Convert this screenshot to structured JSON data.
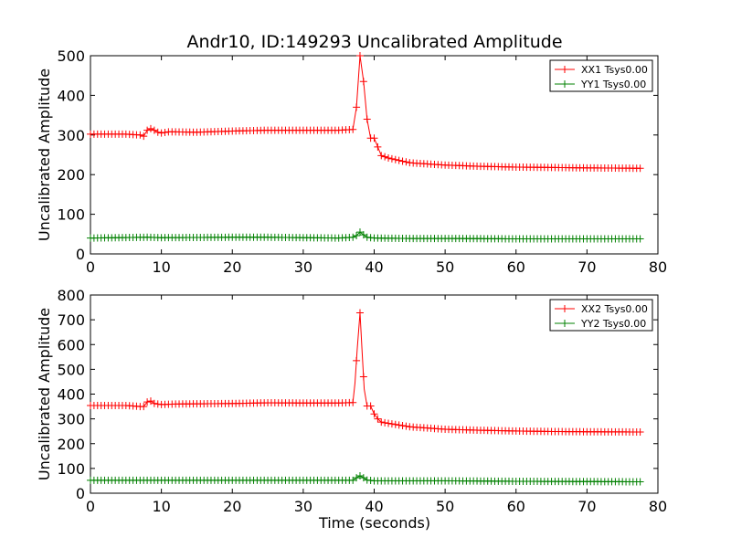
{
  "chart_data": {
    "title": "Andr10, ID:149293 Uncalibrated Amplitude",
    "xlabel": "Time (seconds)",
    "panels": [
      {
        "type": "line",
        "ylabel": "Uncalibrated Amplitude",
        "xlim": [
          0,
          80
        ],
        "ylim": [
          0,
          500
        ],
        "xticks": [
          "0",
          "10",
          "20",
          "30",
          "40",
          "50",
          "60",
          "70",
          "80"
        ],
        "yticks": [
          "0",
          "100",
          "200",
          "300",
          "400",
          "500"
        ],
        "legend_position": "top-right",
        "series": [
          {
            "name": "XX1 Tsys0.00",
            "color": "#ff0000",
            "marker": "plus",
            "points": [
              [
                0,
                302
              ],
              [
                5,
                302
              ],
              [
                7,
                300
              ],
              [
                7.5,
                297
              ],
              [
                8,
                312
              ],
              [
                8.5,
                316
              ],
              [
                9,
                312
              ],
              [
                9.5,
                307
              ],
              [
                10,
                305
              ],
              [
                11,
                308
              ],
              [
                15,
                307
              ],
              [
                20,
                310
              ],
              [
                25,
                312
              ],
              [
                30,
                312
              ],
              [
                35,
                312
              ],
              [
                37,
                314
              ],
              [
                37.5,
                370
              ],
              [
                38,
                500
              ],
              [
                38.5,
                435
              ],
              [
                39,
                340
              ],
              [
                39.5,
                292
              ],
              [
                40,
                292
              ],
              [
                40.5,
                270
              ],
              [
                41,
                248
              ],
              [
                42,
                242
              ],
              [
                43,
                238
              ],
              [
                45,
                230
              ],
              [
                50,
                224
              ],
              [
                55,
                221
              ],
              [
                60,
                219
              ],
              [
                65,
                218
              ],
              [
                70,
                217
              ],
              [
                77.5,
                216
              ]
            ]
          },
          {
            "name": "YY1 Tsys0.00",
            "color": "#008000",
            "marker": "plus",
            "points": [
              [
                0,
                40
              ],
              [
                8,
                42
              ],
              [
                10,
                41
              ],
              [
                20,
                42
              ],
              [
                25,
                42
              ],
              [
                30,
                41
              ],
              [
                35,
                40
              ],
              [
                37,
                42
              ],
              [
                37.5,
                46
              ],
              [
                38,
                55
              ],
              [
                38.5,
                48
              ],
              [
                39,
                42
              ],
              [
                40,
                40
              ],
              [
                45,
                39
              ],
              [
                50,
                39
              ],
              [
                60,
                38
              ],
              [
                70,
                38
              ],
              [
                77.5,
                38
              ]
            ]
          }
        ]
      },
      {
        "type": "line",
        "ylabel": "Uncalibrated Amplitude",
        "xlim": [
          0,
          80
        ],
        "ylim": [
          0,
          800
        ],
        "xticks": [
          "0",
          "10",
          "20",
          "30",
          "40",
          "50",
          "60",
          "70",
          "80"
        ],
        "yticks": [
          "0",
          "100",
          "200",
          "300",
          "400",
          "500",
          "600",
          "700",
          "800"
        ],
        "legend_position": "top-right",
        "series": [
          {
            "name": "XX2 Tsys0.00",
            "color": "#ff0000",
            "marker": "plus",
            "points": [
              [
                0,
                354
              ],
              [
                5,
                354
              ],
              [
                7,
                350
              ],
              [
                7.5,
                350
              ],
              [
                8,
                368
              ],
              [
                8.5,
                372
              ],
              [
                9,
                362
              ],
              [
                10,
                358
              ],
              [
                12,
                360
              ],
              [
                20,
                362
              ],
              [
                25,
                365
              ],
              [
                30,
                364
              ],
              [
                35,
                364
              ],
              [
                37,
                366
              ],
              [
                37.3,
                445
              ],
              [
                37.6,
                580
              ],
              [
                38,
                728
              ],
              [
                38.3,
                570
              ],
              [
                38.6,
                420
              ],
              [
                39,
                352
              ],
              [
                39.5,
                352
              ],
              [
                40,
                320
              ],
              [
                40.5,
                300
              ],
              [
                41,
                287
              ],
              [
                42,
                282
              ],
              [
                45,
                268
              ],
              [
                50,
                258
              ],
              [
                55,
                254
              ],
              [
                60,
                251
              ],
              [
                65,
                249
              ],
              [
                70,
                248
              ],
              [
                77.5,
                247
              ]
            ]
          },
          {
            "name": "YY2 Tsys0.00",
            "color": "#008000",
            "marker": "plus",
            "points": [
              [
                0,
                52
              ],
              [
                10,
                52
              ],
              [
                20,
                52
              ],
              [
                30,
                52
              ],
              [
                35,
                52
              ],
              [
                37,
                52
              ],
              [
                37.5,
                62
              ],
              [
                38,
                70
              ],
              [
                38.5,
                62
              ],
              [
                39,
                53
              ],
              [
                40,
                50
              ],
              [
                50,
                50
              ],
              [
                60,
                48
              ],
              [
                70,
                47
              ],
              [
                77.5,
                46
              ]
            ]
          }
        ]
      }
    ]
  }
}
